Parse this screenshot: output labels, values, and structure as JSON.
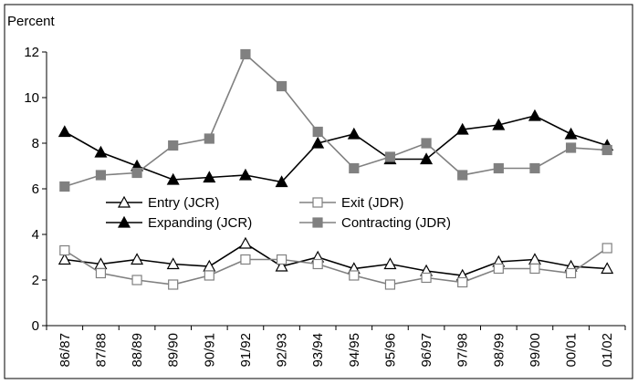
{
  "chart_data": {
    "type": "line",
    "y_axis_label": "Percent",
    "categories": [
      "86/87",
      "87/88",
      "88/89",
      "89/90",
      "90/91",
      "91/92",
      "92/93",
      "93/94",
      "94/95",
      "95/96",
      "96/97",
      "97/98",
      "98/99",
      "99/00",
      "00/01",
      "01/02"
    ],
    "ylim": [
      0,
      12
    ],
    "yticks": [
      0,
      2,
      4,
      6,
      8,
      10,
      12
    ],
    "grid": false,
    "series": [
      {
        "name": "Entry (JCR)",
        "color": "#000000",
        "marker": "open-triangle",
        "values": [
          2.9,
          2.7,
          2.9,
          2.7,
          2.6,
          3.6,
          2.6,
          3.0,
          2.5,
          2.7,
          2.4,
          2.2,
          2.8,
          2.9,
          2.6,
          2.5
        ]
      },
      {
        "name": "Exit (JDR)",
        "color": "#808080",
        "marker": "open-square",
        "values": [
          3.3,
          2.3,
          2.0,
          1.8,
          2.2,
          2.9,
          2.9,
          2.7,
          2.2,
          1.8,
          2.1,
          1.9,
          2.5,
          2.5,
          2.3,
          3.4
        ]
      },
      {
        "name": "Expanding (JCR)",
        "color": "#000000",
        "marker": "filled-triangle",
        "values": [
          8.5,
          7.6,
          7.0,
          6.4,
          6.5,
          6.6,
          6.3,
          8.0,
          8.4,
          7.3,
          7.3,
          8.6,
          8.8,
          9.2,
          8.4,
          7.9
        ]
      },
      {
        "name": "Contracting (JDR)",
        "color": "#808080",
        "marker": "filled-square",
        "values": [
          6.1,
          6.6,
          6.7,
          7.9,
          8.2,
          11.9,
          10.5,
          8.5,
          6.9,
          7.4,
          8.0,
          6.6,
          6.9,
          6.9,
          7.8,
          7.7
        ]
      }
    ]
  }
}
